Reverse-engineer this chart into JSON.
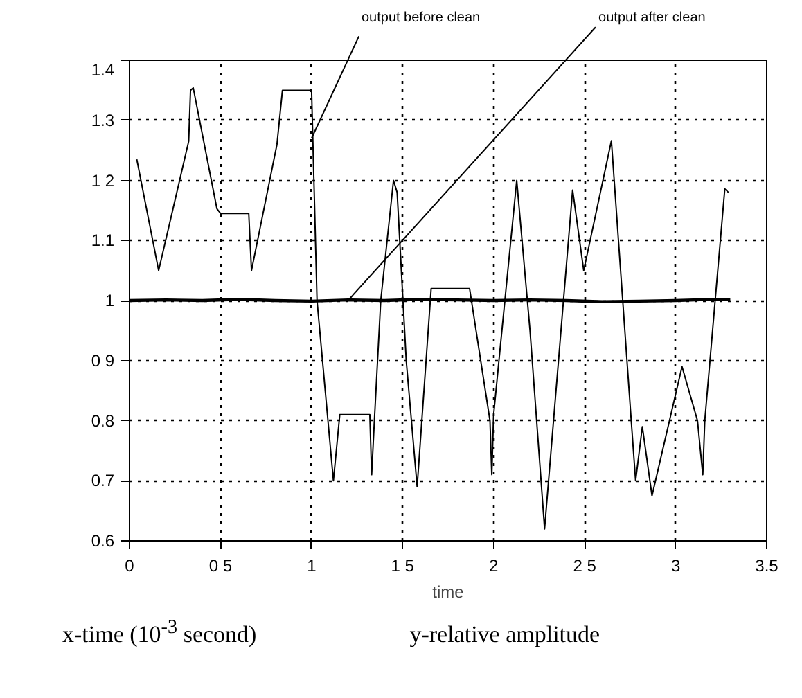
{
  "chart_data": {
    "type": "line",
    "xlabel": "time",
    "xlim": [
      0,
      3.5
    ],
    "ylim": [
      0.6,
      1.4
    ],
    "xticks": [
      0,
      {
        "value": 0.5,
        "label": "0 5"
      },
      1,
      {
        "value": 1.5,
        "label": "1 5"
      },
      2,
      {
        "value": 2.5,
        "label": "2 5"
      },
      3,
      3.5
    ],
    "yticks": [
      0.6,
      0.7,
      0.8,
      {
        "value": 0.9,
        "label": "0 9"
      },
      1,
      1.1,
      {
        "value": 1.2,
        "label": "1 2"
      },
      1.3,
      1.4
    ],
    "grid": true,
    "line_style": "solid",
    "series": [
      {
        "color": "#000000",
        "x": [
          0.04,
          0.16,
          0.325,
          0.335,
          0.35,
          0.48,
          0.5,
          0.655,
          0.67,
          0.81,
          0.84,
          1.0,
          1.03,
          1.12,
          1.155,
          1.32,
          1.33,
          1.345,
          1.38,
          1.45,
          1.47,
          1.52,
          1.58,
          1.657,
          1.868,
          1.98,
          1.99,
          2.0,
          2.127,
          2.2,
          2.28,
          2.434,
          2.495,
          2.647,
          2.756,
          2.78,
          2.817,
          2.87,
          3.035,
          3.12,
          3.149,
          3.16,
          3.27,
          3.29
        ],
        "values": [
          1.235,
          1.05,
          1.265,
          1.35,
          1.354,
          1.153,
          1.145,
          1.145,
          1.05,
          1.26,
          1.35,
          1.35,
          1.0,
          0.7,
          0.81,
          0.81,
          0.71,
          0.8,
          1.0,
          1.2,
          1.18,
          0.9,
          0.69,
          1.02,
          1.02,
          0.8,
          0.71,
          0.81,
          1.2,
          0.95,
          0.62,
          1.184,
          1.05,
          1.266,
          0.8,
          0.7,
          0.79,
          0.675,
          0.89,
          0.8,
          0.71,
          0.8,
          1.186,
          1.18
        ]
      },
      {
        "color": "#000000",
        "x": [
          0.0,
          0.2,
          0.4,
          0.6,
          0.8,
          1.0,
          1.2,
          1.4,
          1.6,
          1.8,
          2.0,
          2.2,
          2.4,
          2.6,
          2.8,
          3.0,
          3.2,
          3.3
        ],
        "values": [
          1.0,
          1.001,
          1.0,
          1.002,
          1.0,
          0.999,
          1.001,
          1.0,
          1.002,
          1.001,
          1.0,
          1.001,
          1.0,
          0.998,
          0.999,
          1.0,
          1.002,
          1.002
        ]
      }
    ],
    "annotations": [
      {
        "text": "output before clean",
        "x": 1.0,
        "y": 1.27
      },
      {
        "text": "output after clean",
        "x": 1.2,
        "y": 1.0
      },
      "x-time (10$^{-3}$ second)                          y-relative amplitude"
    ]
  }
}
